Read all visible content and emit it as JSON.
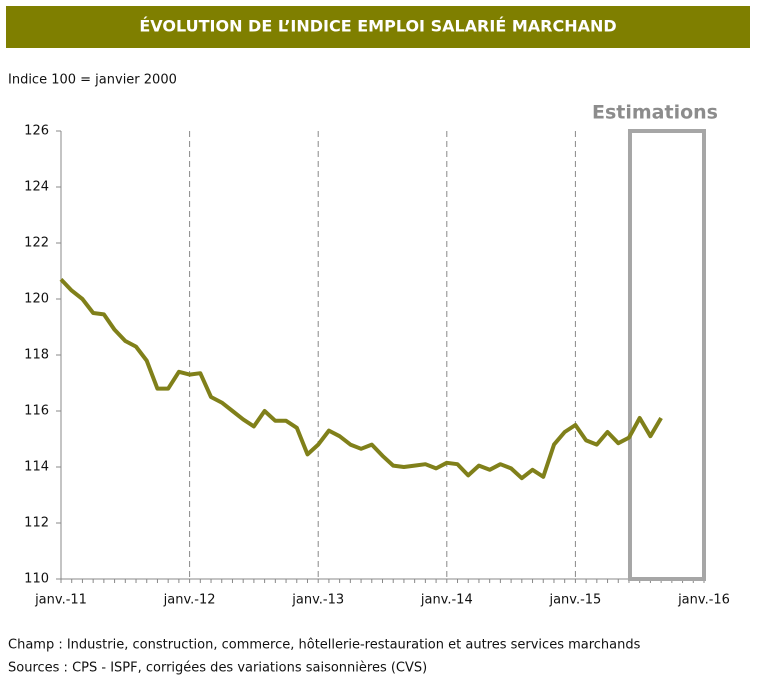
{
  "chart_data": {
    "type": "line",
    "title": "ÉVOLUTION DE L’INDICE EMPLOI SALARIÉ MARCHAND",
    "subtitle": "Indice 100 = janvier 2000",
    "annotation": "Estimations",
    "notes": [
      "Champ : Industrie, construction, commerce, hôtellerie-restauration et autres services marchands",
      "Sources : CPS - ISPF, corrigées des variations saisonnières (CVS)"
    ],
    "categories": [
      "janv.-11",
      null,
      null,
      null,
      null,
      null,
      null,
      null,
      null,
      null,
      null,
      null,
      "janv.-12",
      null,
      null,
      null,
      null,
      null,
      null,
      null,
      null,
      null,
      null,
      null,
      "janv.-13",
      null,
      null,
      null,
      null,
      null,
      null,
      null,
      null,
      null,
      null,
      null,
      "janv.-14",
      null,
      null,
      null,
      null,
      null,
      null,
      null,
      null,
      null,
      null,
      null,
      "janv.-15",
      null,
      null,
      null,
      null,
      null,
      null,
      null,
      null,
      null,
      null,
      null,
      "janv.-16"
    ],
    "series": [
      {
        "color": "#80801a",
        "values": [
          120.7,
          120.3,
          120.0,
          119.5,
          119.45,
          118.9,
          118.5,
          118.3,
          117.8,
          116.8,
          116.8,
          117.4,
          117.3,
          117.35,
          116.5,
          116.3,
          116.0,
          115.7,
          115.45,
          116.0,
          115.65,
          115.65,
          115.4,
          114.45,
          114.8,
          115.3,
          115.1,
          114.8,
          114.65,
          114.8,
          114.4,
          114.05,
          114.0,
          114.05,
          114.1,
          113.95,
          114.15,
          114.1,
          113.7,
          114.05,
          113.9,
          114.1,
          113.95,
          113.6,
          113.9,
          113.65,
          114.8,
          115.25,
          115.5,
          114.95,
          114.8,
          115.25,
          114.85,
          115.05,
          115.75,
          115.1,
          115.75,
          null,
          null,
          null,
          null
        ]
      }
    ],
    "ylim": [
      110,
      126
    ],
    "yticks": [
      110,
      112,
      114,
      116,
      118,
      120,
      122,
      124,
      126
    ],
    "grid": true
  }
}
